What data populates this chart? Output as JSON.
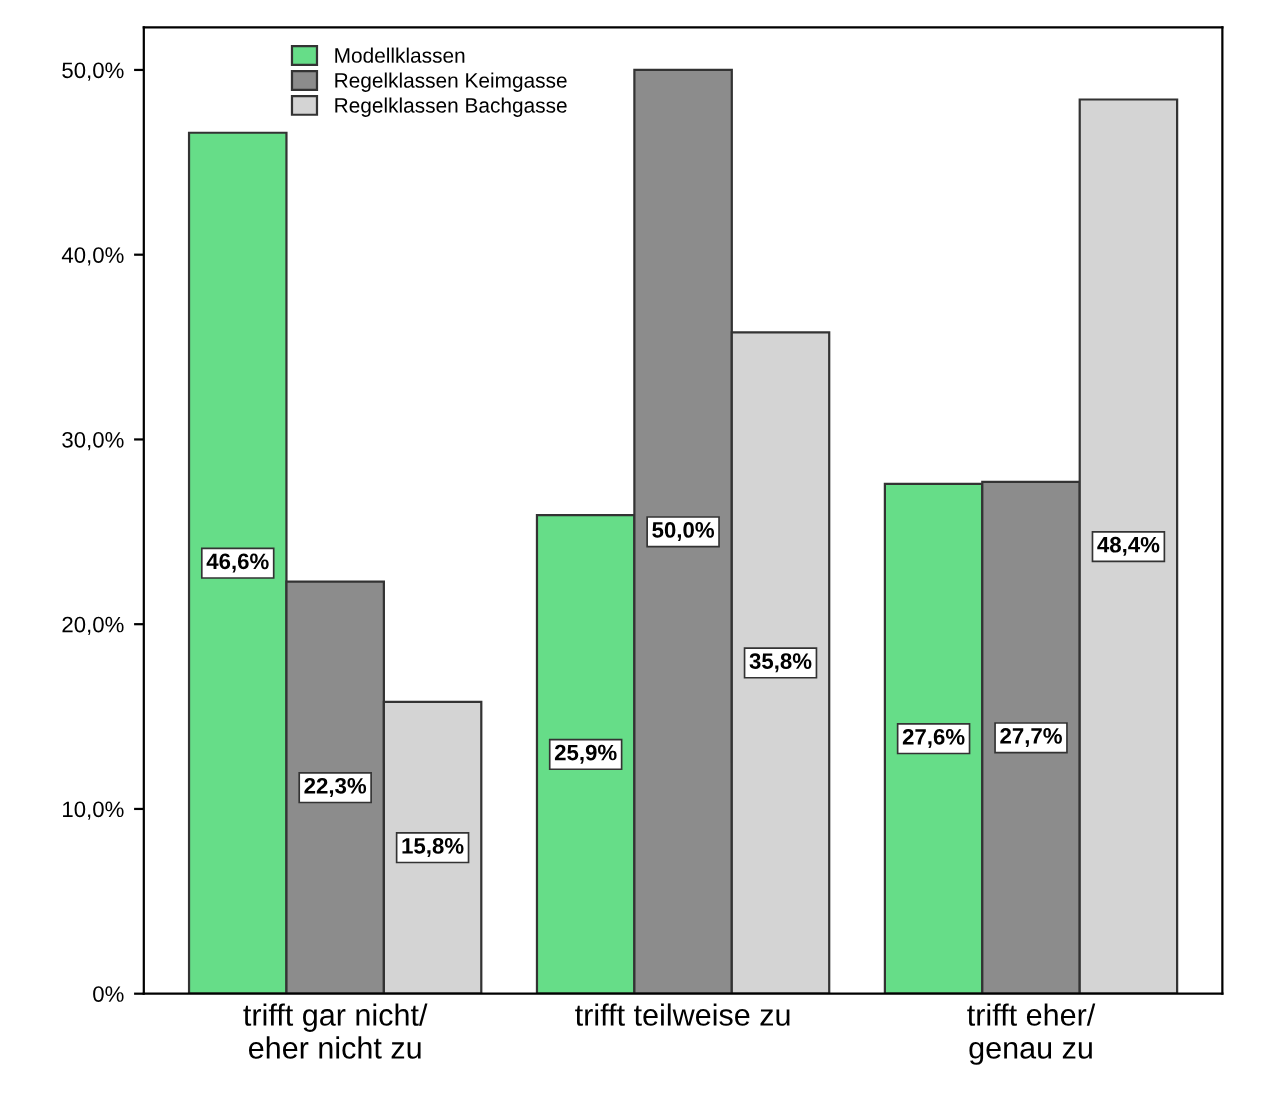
{
  "chart_data": {
    "type": "bar",
    "categories": [
      "trifft gar nicht/\neher nicht zu",
      "trifft teilweise zu",
      "trifft eher/\ngenau zu"
    ],
    "series": [
      {
        "name": "Modellklassen",
        "color": "#66dd88",
        "values": [
          46.6,
          25.9,
          27.6
        ],
        "value_labels": [
          "46,6%",
          "25,9%",
          "27,6%"
        ]
      },
      {
        "name": "Regelklassen Keimgasse",
        "color": "#8c8c8c",
        "values": [
          22.3,
          50.0,
          27.7
        ],
        "value_labels": [
          "22,3%",
          "50,0%",
          "27,7%"
        ]
      },
      {
        "name": "Regelklassen Bachgasse",
        "color": "#d4d4d4",
        "values": [
          15.8,
          35.8,
          48.4
        ],
        "value_labels": [
          "15,8%",
          "35,8%",
          "48,4%"
        ]
      }
    ],
    "ylim": [
      0,
      52.3
    ],
    "yticks": [
      {
        "value": 0,
        "label": "0%"
      },
      {
        "value": 10,
        "label": "10,0%"
      },
      {
        "value": 20,
        "label": "20,0%"
      },
      {
        "value": 30,
        "label": "30,0%"
      },
      {
        "value": 40,
        "label": "40,0%"
      },
      {
        "value": 50,
        "label": "50,0%"
      }
    ],
    "legend": "top left",
    "grid": false
  }
}
